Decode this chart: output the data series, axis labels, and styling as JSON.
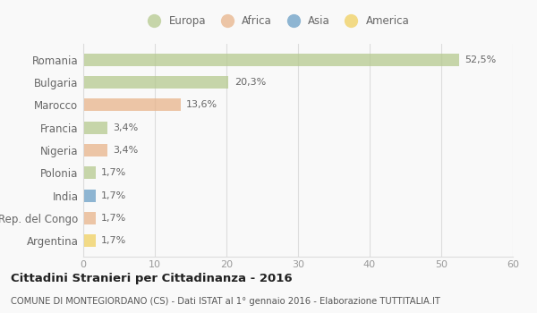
{
  "categories": [
    "Romania",
    "Bulgaria",
    "Marocco",
    "Francia",
    "Nigeria",
    "Polonia",
    "India",
    "Rep. del Congo",
    "Argentina"
  ],
  "values": [
    52.5,
    20.3,
    13.6,
    3.4,
    3.4,
    1.7,
    1.7,
    1.7,
    1.7
  ],
  "labels": [
    "52,5%",
    "20,3%",
    "13,6%",
    "3,4%",
    "3,4%",
    "1,7%",
    "1,7%",
    "1,7%",
    "1,7%"
  ],
  "colors": [
    "#b5c98e",
    "#b5c98e",
    "#e8b48a",
    "#b5c98e",
    "#e8b48a",
    "#b5c98e",
    "#6a9ec5",
    "#e8b48a",
    "#f0d060"
  ],
  "legend_labels": [
    "Europa",
    "Africa",
    "Asia",
    "America"
  ],
  "legend_colors": [
    "#b5c98e",
    "#e8b48a",
    "#6a9ec5",
    "#f0d060"
  ],
  "title": "Cittadini Stranieri per Cittadinanza - 2016",
  "subtitle": "COMUNE DI MONTEGIORDANO (CS) - Dati ISTAT al 1° gennaio 2016 - Elaborazione TUTTITALIA.IT",
  "xlim": [
    0,
    60
  ],
  "xticks": [
    0,
    10,
    20,
    30,
    40,
    50,
    60
  ],
  "background_color": "#f9f9f9",
  "grid_color": "#dddddd",
  "bar_alpha": 0.75,
  "bar_height": 0.55
}
